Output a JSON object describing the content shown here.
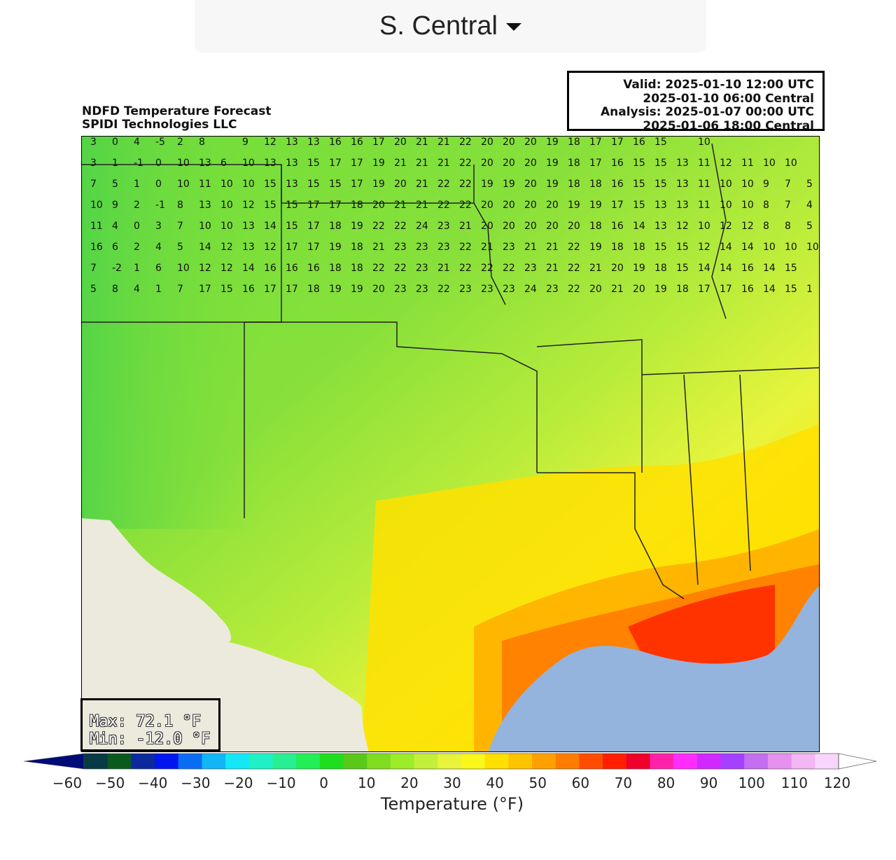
{
  "region_selector": {
    "label": "S. Central"
  },
  "title": {
    "line1": "NDFD Temperature Forecast",
    "line2": "SPIDI Technologies LLC"
  },
  "valid_box": {
    "line1": "Valid: 2025-01-10 12:00 UTC",
    "line2": "2025-01-10 06:00 Central",
    "line3": "Analysis: 2025-01-07 00:00 UTC",
    "line4": "2025-01-06 18:00 Central"
  },
  "stats": {
    "max": "Max: 72.1 °F",
    "min": "Min: -12.0 °F"
  },
  "colorbar": {
    "label": "Temperature (°F)",
    "ticks": [
      "−60",
      "−50",
      "−40",
      "−30",
      "−20",
      "−10",
      "0",
      "10",
      "20",
      "30",
      "40",
      "50",
      "60",
      "70",
      "80",
      "90",
      "100",
      "110",
      "120"
    ],
    "colors": [
      "#000b77",
      "#083a45",
      "#0a5a1e",
      "#0c2a9c",
      "#0016f0",
      "#0a6cf2",
      "#12b5f5",
      "#14e8f7",
      "#1ef2c4",
      "#28f092",
      "#22ee55",
      "#1ede1e",
      "#5ac81a",
      "#80dc1e",
      "#9cec28",
      "#c2f03a",
      "#e8f43c",
      "#fbf71a",
      "#ffe000",
      "#ffc400",
      "#ffa000",
      "#ff7c00",
      "#ff4c00",
      "#ff1e00",
      "#f0002a",
      "#ff22a8",
      "#ff2cff",
      "#d028ff",
      "#a440ff",
      "#c46ef0",
      "#e690f0",
      "#f4b6f4",
      "#f8d6fc",
      "#ffffff"
    ]
  },
  "map_labels": [
    [
      "3",
      "0",
      "4",
      "-5",
      "2",
      "8",
      " ",
      "9",
      "12",
      "13",
      "13",
      "16",
      "16",
      "17",
      "20",
      "21",
      "21",
      "22",
      "20",
      "20",
      "20",
      "19",
      "18",
      "17",
      "17",
      "16",
      "15",
      " ",
      "10"
    ],
    [
      "3",
      "1",
      "-1",
      "0",
      "10",
      "13",
      "6",
      "10",
      "13",
      "13",
      "15",
      "17",
      "17",
      "19",
      "21",
      "21",
      "21",
      "22",
      "20",
      "20",
      "20",
      "19",
      "18",
      "17",
      "16",
      "15",
      "15",
      "13",
      "11",
      "12",
      "11",
      "10",
      "10"
    ],
    [
      "7",
      "5",
      "1",
      "0",
      "10",
      "11",
      "10",
      "10",
      "15",
      "13",
      "15",
      "15",
      "17",
      "19",
      "20",
      "21",
      "22",
      "22",
      "19",
      "19",
      "20",
      "19",
      "18",
      "18",
      "16",
      "15",
      "15",
      "13",
      "11",
      "10",
      "10",
      "9",
      "7",
      "5"
    ],
    [
      "10",
      "9",
      "2",
      "-1",
      "8",
      "13",
      "10",
      "12",
      "15",
      "15",
      "17",
      "17",
      "18",
      "20",
      "21",
      "21",
      "22",
      "22",
      "20",
      "20",
      "20",
      "20",
      "19",
      "19",
      "17",
      "15",
      "13",
      "13",
      "11",
      "10",
      "10",
      "8",
      "7",
      "4"
    ],
    [
      "11",
      "4",
      "0",
      "3",
      "7",
      "10",
      "10",
      "13",
      "14",
      "15",
      "17",
      "18",
      "19",
      "22",
      "22",
      "24",
      "23",
      "21",
      "20",
      "20",
      "20",
      "20",
      "20",
      "18",
      "16",
      "14",
      "13",
      "12",
      "10",
      "12",
      "12",
      "8",
      "8",
      "5"
    ],
    [
      "16",
      "6",
      "2",
      "4",
      "5",
      "14",
      "12",
      "13",
      "12",
      "17",
      "17",
      "19",
      "18",
      "21",
      "23",
      "23",
      "23",
      "22",
      "21",
      "23",
      "21",
      "21",
      "22",
      "19",
      "18",
      "18",
      "15",
      "15",
      "12",
      "14",
      "14",
      "10",
      "10",
      "10"
    ],
    [
      "7",
      "-2",
      "1",
      "6",
      "10",
      "12",
      "12",
      "14",
      "16",
      "16",
      "16",
      "18",
      "18",
      "22",
      "22",
      "23",
      "21",
      "22",
      "22",
      "22",
      "23",
      "21",
      "22",
      "21",
      "20",
      "19",
      "18",
      "15",
      "14",
      "14",
      "16",
      "14",
      "15"
    ],
    [
      "5",
      "8",
      "4",
      "1",
      "7",
      "17",
      "15",
      "16",
      "17",
      "17",
      "18",
      "19",
      "19",
      "20",
      "23",
      "23",
      "22",
      "23",
      "23",
      "23",
      "24",
      "23",
      "22",
      "20",
      "21",
      "20",
      "19",
      "18",
      "17",
      "17",
      "16",
      "14",
      "15",
      "1"
    ]
  ]
}
